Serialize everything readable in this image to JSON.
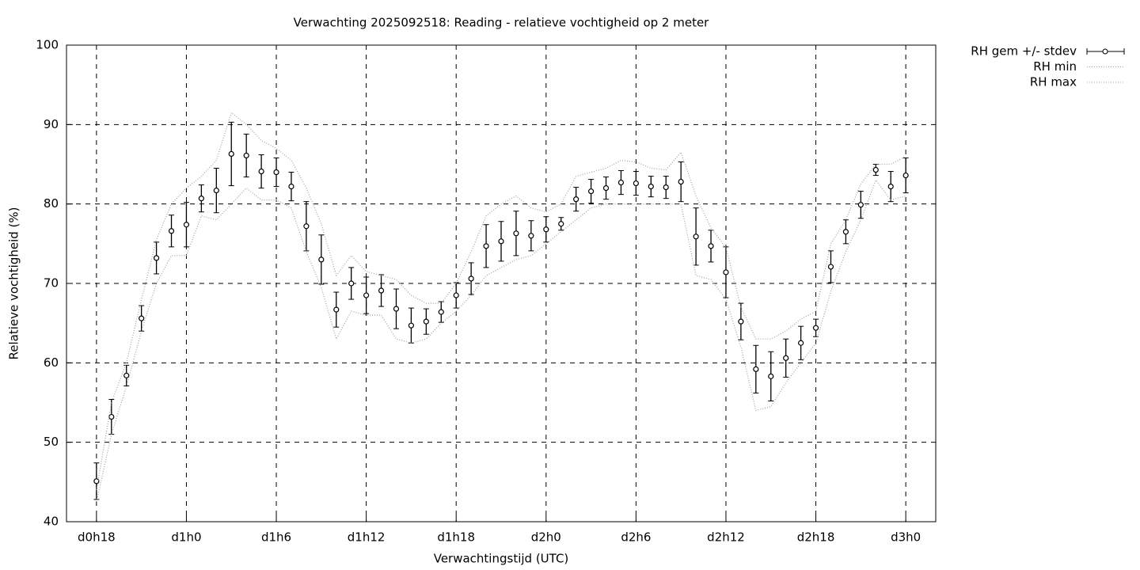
{
  "chart_data": {
    "type": "errorbar-line",
    "title": "Verwachting 2025092518: Reading - relatieve vochtigheid op 2 meter",
    "x_label": "Verwachtingstijd (UTC)",
    "y_label": "Relatieve vochtigheid (%)",
    "x": [
      18,
      19,
      20,
      21,
      22,
      23,
      24,
      25,
      26,
      27,
      28,
      29,
      30,
      31,
      32,
      33,
      34,
      35,
      36,
      37,
      38,
      39,
      40,
      41,
      42,
      43,
      44,
      45,
      46,
      47,
      48,
      49,
      50,
      51,
      52,
      53,
      54,
      55,
      56,
      57,
      58,
      59,
      60,
      61,
      62,
      63,
      64,
      65,
      66,
      67,
      68,
      69,
      70,
      71,
      72
    ],
    "xlim": [
      16,
      74
    ],
    "xticks": [
      {
        "value": 18,
        "label": "d0h18"
      },
      {
        "value": 24,
        "label": "d1h0"
      },
      {
        "value": 30,
        "label": "d1h6"
      },
      {
        "value": 36,
        "label": "d1h12"
      },
      {
        "value": 42,
        "label": "d1h18"
      },
      {
        "value": 48,
        "label": "d2h0"
      },
      {
        "value": 54,
        "label": "d2h6"
      },
      {
        "value": 60,
        "label": "d2h12"
      },
      {
        "value": 66,
        "label": "d2h18"
      },
      {
        "value": 72,
        "label": "d3h0"
      }
    ],
    "ylim": [
      40,
      100
    ],
    "yticks": [
      40,
      50,
      60,
      70,
      80,
      90,
      100
    ],
    "grid": true,
    "legend": "top-right",
    "series": [
      {
        "name": "RH gem +/- stdev",
        "color": "#000000",
        "values": [
          45.1,
          53.2,
          58.4,
          65.6,
          73.2,
          76.6,
          77.4,
          80.7,
          81.7,
          86.3,
          86.1,
          84.1,
          84.0,
          82.2,
          77.2,
          73.0,
          66.7,
          70.0,
          68.5,
          69.1,
          66.8,
          64.7,
          65.2,
          66.4,
          68.5,
          70.6,
          74.7,
          75.3,
          76.3,
          76.0,
          76.8,
          77.5,
          80.6,
          81.6,
          82.0,
          82.7,
          82.6,
          82.2,
          82.1,
          82.8,
          75.9,
          74.7,
          71.4,
          65.2,
          59.2,
          58.3,
          60.6,
          62.5,
          64.4,
          72.1,
          76.5,
          79.9,
          84.3,
          82.2,
          83.6
        ],
        "errors": [
          2.3,
          2.2,
          1.3,
          1.6,
          2.0,
          2.0,
          2.8,
          1.7,
          2.8,
          4.0,
          2.7,
          2.1,
          1.8,
          1.8,
          3.1,
          3.1,
          2.2,
          2.0,
          2.3,
          2.0,
          2.5,
          2.2,
          1.6,
          1.3,
          1.6,
          2.0,
          2.7,
          2.5,
          2.8,
          1.9,
          1.6,
          0.8,
          1.5,
          1.5,
          1.4,
          1.5,
          1.5,
          1.3,
          1.4,
          2.5,
          3.6,
          2.0,
          3.2,
          2.3,
          3.0,
          3.1,
          2.4,
          2.1,
          1.1,
          2.0,
          1.5,
          1.7,
          0.7,
          1.9,
          2.2
        ]
      },
      {
        "name": "RH min",
        "color": "#a0a0a0",
        "values": [
          42.5,
          51,
          57,
          64,
          70,
          73.5,
          73.5,
          78.5,
          78,
          80,
          82,
          80.5,
          80.5,
          79.5,
          74,
          69.5,
          63,
          66.5,
          66,
          66,
          63,
          62.5,
          63,
          65,
          66.5,
          68.5,
          71,
          72,
          73,
          73.5,
          75,
          76.5,
          78,
          79.5,
          80,
          80,
          80,
          80,
          80,
          80,
          71,
          70.5,
          68,
          62,
          54,
          54.5,
          57.5,
          60,
          62.5,
          69,
          74,
          78,
          83,
          80.5,
          81
        ]
      },
      {
        "name": "RH max",
        "color": "#a0a0a0",
        "values": [
          44,
          55,
          60,
          68,
          75.5,
          80,
          82,
          83.5,
          85.5,
          91.5,
          90,
          88,
          87,
          85.5,
          82,
          77.5,
          71,
          73.5,
          71.5,
          71,
          70.5,
          68.5,
          67.5,
          67.5,
          70,
          74,
          78.5,
          80,
          81,
          79.5,
          79,
          80,
          83.5,
          84,
          84.5,
          85.5,
          85.3,
          84.5,
          84.3,
          86.5,
          81,
          77,
          74.5,
          67,
          63,
          63,
          64,
          65.5,
          66.5,
          75,
          78,
          82.5,
          85,
          85,
          86
        ]
      }
    ]
  }
}
